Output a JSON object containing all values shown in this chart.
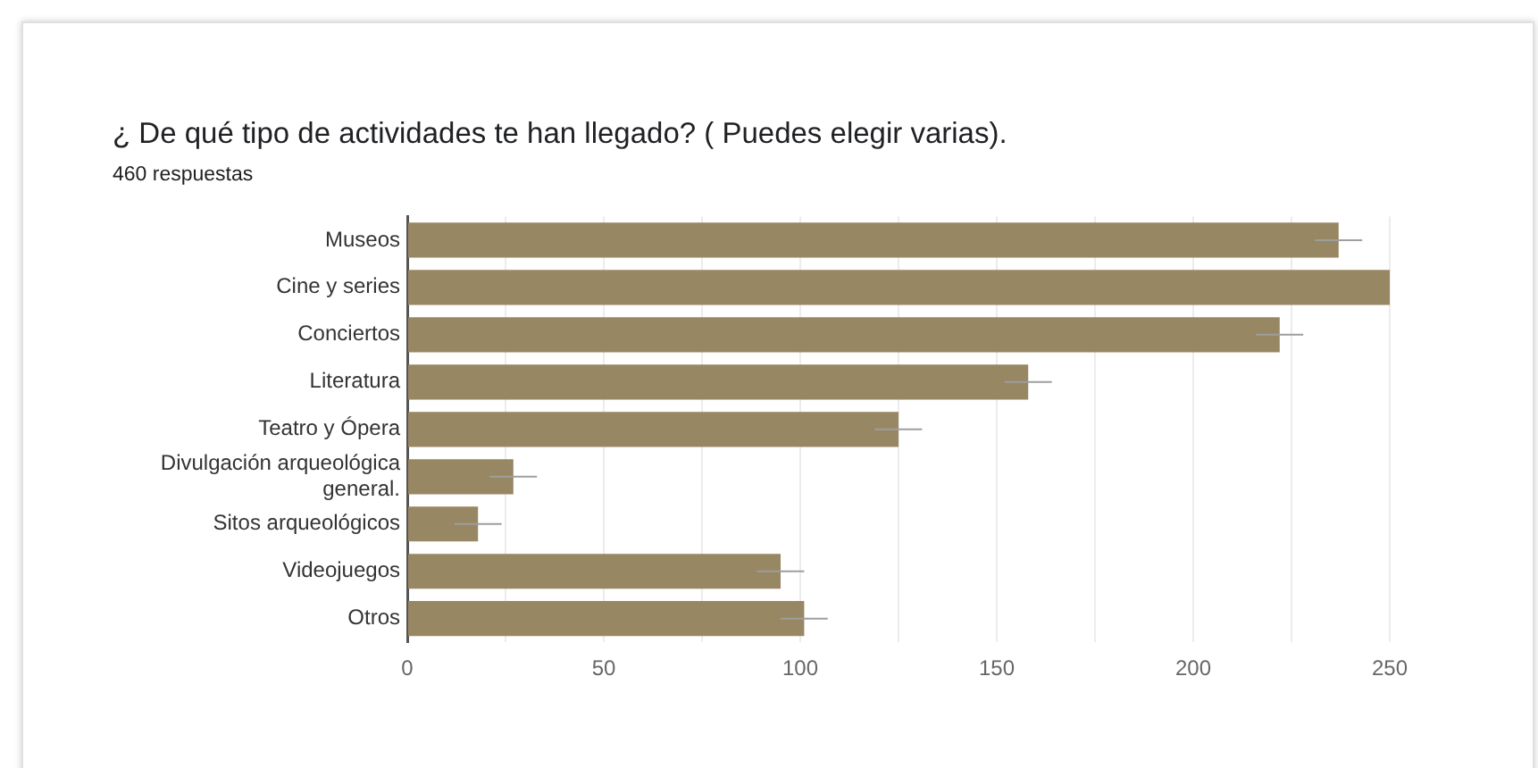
{
  "chart_data": {
    "type": "bar",
    "orientation": "horizontal",
    "title": "¿ De qué tipo de actividades te han llegado? ( Puedes elegir varias).",
    "subtitle": "460 respuestas",
    "categories": [
      "Museos",
      "Cine y series",
      "Conciertos",
      "Literatura",
      "Teatro y Ópera",
      "Divulgación arqueológica general.",
      "Sitos arqueológicos",
      "Videojuegos",
      "Otros"
    ],
    "values": [
      237,
      250,
      222,
      158,
      125,
      27,
      18,
      95,
      101
    ],
    "errors": [
      6,
      null,
      6,
      6,
      6,
      6,
      6,
      6,
      6
    ],
    "color": "#988763",
    "xlim": [
      0,
      250
    ],
    "xticks": [
      0,
      {
        "value": 25,
        "label": null
      },
      50,
      {
        "value": 75,
        "label": null
      },
      100,
      {
        "value": 125,
        "label": null
      },
      150,
      {
        "value": 175,
        "label": null
      },
      200,
      {
        "value": 225,
        "label": null
      },
      250
    ],
    "grid": "x",
    "legend": false
  }
}
